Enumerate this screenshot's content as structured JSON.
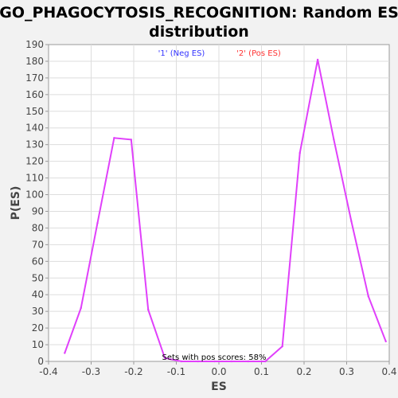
{
  "chart_data": {
    "type": "line",
    "title_line1": "GO_PHAGOCYTOSIS_RECOGNITION: Random ES",
    "title_line2": "distribution",
    "xlabel": "ES",
    "ylabel": "P(ES)",
    "xlim": [
      -0.4,
      0.4
    ],
    "ylim": [
      0,
      190
    ],
    "xticks": [
      -0.4,
      -0.3,
      -0.2,
      -0.1,
      0.0,
      0.1,
      0.2,
      0.3,
      0.4
    ],
    "xtick_labels": [
      "-0.4",
      "-0.3",
      "-0.2",
      "-0.1",
      "0.0",
      "0.1",
      "0.2",
      "0.3",
      "0.4"
    ],
    "yticks": [
      0,
      10,
      20,
      30,
      40,
      50,
      60,
      70,
      80,
      90,
      100,
      110,
      120,
      130,
      140,
      150,
      160,
      170,
      180,
      190
    ],
    "grid": true,
    "legend": [
      {
        "label": "'1' (Neg ES)",
        "color": "#3333ff"
      },
      {
        "label": "'2' (Pos ES)",
        "color": "#ff3333"
      }
    ],
    "annotation": "Sets with pos scores: 58%",
    "line_color": "#e040fb",
    "series": [
      {
        "x": [
          -0.362,
          -0.324,
          -0.285,
          -0.246,
          -0.206,
          -0.166,
          -0.127,
          -0.088,
          -0.049,
          -0.01,
          0.03,
          0.069,
          0.109,
          0.149,
          0.19,
          0.232,
          0.27,
          0.311,
          0.351,
          0.392
        ],
        "y": [
          5,
          32,
          83,
          134,
          133,
          31,
          2,
          0,
          0,
          0,
          0,
          0,
          0,
          9,
          125,
          181,
          133,
          84,
          39,
          12
        ]
      }
    ]
  }
}
